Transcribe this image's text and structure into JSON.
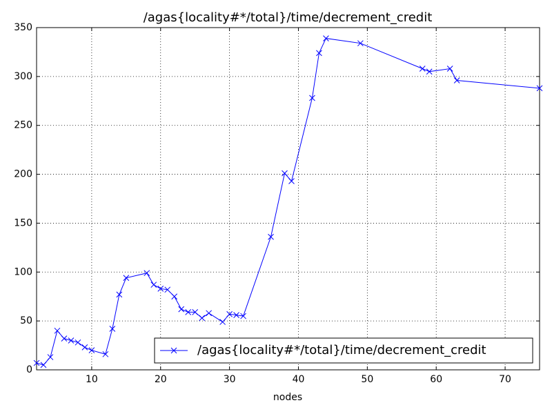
{
  "chart_data": {
    "type": "line",
    "title": "/agas{locality#*/total}/time/decrement_credit",
    "xlabel": "nodes",
    "x": [
      2,
      3,
      4,
      5,
      6,
      7,
      8,
      9,
      10,
      12,
      13,
      14,
      15,
      18,
      19,
      20,
      21,
      22,
      23,
      24,
      25,
      26,
      27,
      29,
      30,
      31,
      32,
      36,
      38,
      39,
      42,
      43,
      44,
      49,
      58,
      59,
      62,
      63,
      75
    ],
    "series": [
      {
        "name": "/agas{locality#*/total}/time/decrement_credit",
        "color": "#0000ff",
        "values": [
          7,
          5,
          13,
          40,
          32,
          30,
          28,
          23,
          20,
          16,
          42,
          77,
          94,
          99,
          87,
          83,
          82,
          75,
          62,
          59,
          59,
          53,
          58,
          49,
          57,
          56,
          55,
          136,
          201,
          193,
          278,
          324,
          339,
          334,
          308,
          305,
          308,
          296,
          288
        ]
      }
    ],
    "xlim": [
      2,
      75
    ],
    "xticks": [
      10,
      20,
      30,
      40,
      50,
      60,
      70
    ],
    "ylim": [
      0,
      350
    ],
    "yticks": [
      0,
      50,
      100,
      150,
      200,
      250,
      300,
      350
    ],
    "grid": true,
    "legend": "lower right",
    "marker": "x"
  }
}
